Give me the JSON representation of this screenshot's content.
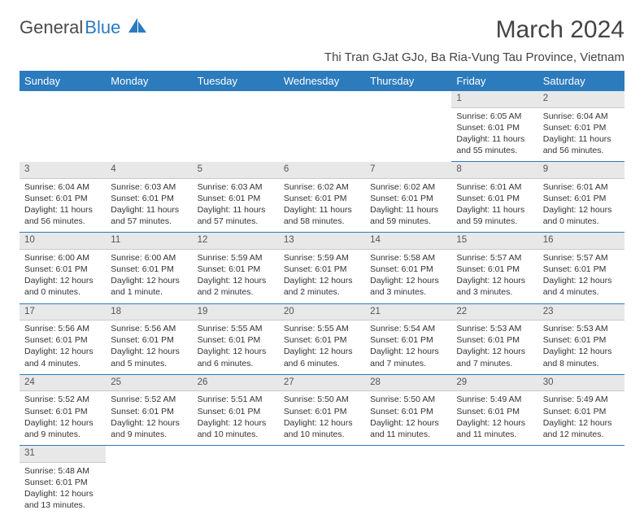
{
  "logo": {
    "part1": "General",
    "part2": "Blue"
  },
  "title": "March 2024",
  "location": "Thi Tran GJat GJo, Ba Ria-Vung Tau Province, Vietnam",
  "dayHeaders": [
    "Sunday",
    "Monday",
    "Tuesday",
    "Wednesday",
    "Thursday",
    "Friday",
    "Saturday"
  ],
  "colors": {
    "headerBg": "#2b7bbd",
    "headerText": "#ffffff",
    "dayBg": "#e8e8e8",
    "border": "#2b7bbd"
  },
  "weeks": [
    [
      null,
      null,
      null,
      null,
      null,
      {
        "n": "1",
        "sunrise": "Sunrise: 6:05 AM",
        "sunset": "Sunset: 6:01 PM",
        "daylight": "Daylight: 11 hours and 55 minutes."
      },
      {
        "n": "2",
        "sunrise": "Sunrise: 6:04 AM",
        "sunset": "Sunset: 6:01 PM",
        "daylight": "Daylight: 11 hours and 56 minutes."
      }
    ],
    [
      {
        "n": "3",
        "sunrise": "Sunrise: 6:04 AM",
        "sunset": "Sunset: 6:01 PM",
        "daylight": "Daylight: 11 hours and 56 minutes."
      },
      {
        "n": "4",
        "sunrise": "Sunrise: 6:03 AM",
        "sunset": "Sunset: 6:01 PM",
        "daylight": "Daylight: 11 hours and 57 minutes."
      },
      {
        "n": "5",
        "sunrise": "Sunrise: 6:03 AM",
        "sunset": "Sunset: 6:01 PM",
        "daylight": "Daylight: 11 hours and 57 minutes."
      },
      {
        "n": "6",
        "sunrise": "Sunrise: 6:02 AM",
        "sunset": "Sunset: 6:01 PM",
        "daylight": "Daylight: 11 hours and 58 minutes."
      },
      {
        "n": "7",
        "sunrise": "Sunrise: 6:02 AM",
        "sunset": "Sunset: 6:01 PM",
        "daylight": "Daylight: 11 hours and 59 minutes."
      },
      {
        "n": "8",
        "sunrise": "Sunrise: 6:01 AM",
        "sunset": "Sunset: 6:01 PM",
        "daylight": "Daylight: 11 hours and 59 minutes."
      },
      {
        "n": "9",
        "sunrise": "Sunrise: 6:01 AM",
        "sunset": "Sunset: 6:01 PM",
        "daylight": "Daylight: 12 hours and 0 minutes."
      }
    ],
    [
      {
        "n": "10",
        "sunrise": "Sunrise: 6:00 AM",
        "sunset": "Sunset: 6:01 PM",
        "daylight": "Daylight: 12 hours and 0 minutes."
      },
      {
        "n": "11",
        "sunrise": "Sunrise: 6:00 AM",
        "sunset": "Sunset: 6:01 PM",
        "daylight": "Daylight: 12 hours and 1 minute."
      },
      {
        "n": "12",
        "sunrise": "Sunrise: 5:59 AM",
        "sunset": "Sunset: 6:01 PM",
        "daylight": "Daylight: 12 hours and 2 minutes."
      },
      {
        "n": "13",
        "sunrise": "Sunrise: 5:59 AM",
        "sunset": "Sunset: 6:01 PM",
        "daylight": "Daylight: 12 hours and 2 minutes."
      },
      {
        "n": "14",
        "sunrise": "Sunrise: 5:58 AM",
        "sunset": "Sunset: 6:01 PM",
        "daylight": "Daylight: 12 hours and 3 minutes."
      },
      {
        "n": "15",
        "sunrise": "Sunrise: 5:57 AM",
        "sunset": "Sunset: 6:01 PM",
        "daylight": "Daylight: 12 hours and 3 minutes."
      },
      {
        "n": "16",
        "sunrise": "Sunrise: 5:57 AM",
        "sunset": "Sunset: 6:01 PM",
        "daylight": "Daylight: 12 hours and 4 minutes."
      }
    ],
    [
      {
        "n": "17",
        "sunrise": "Sunrise: 5:56 AM",
        "sunset": "Sunset: 6:01 PM",
        "daylight": "Daylight: 12 hours and 4 minutes."
      },
      {
        "n": "18",
        "sunrise": "Sunrise: 5:56 AM",
        "sunset": "Sunset: 6:01 PM",
        "daylight": "Daylight: 12 hours and 5 minutes."
      },
      {
        "n": "19",
        "sunrise": "Sunrise: 5:55 AM",
        "sunset": "Sunset: 6:01 PM",
        "daylight": "Daylight: 12 hours and 6 minutes."
      },
      {
        "n": "20",
        "sunrise": "Sunrise: 5:55 AM",
        "sunset": "Sunset: 6:01 PM",
        "daylight": "Daylight: 12 hours and 6 minutes."
      },
      {
        "n": "21",
        "sunrise": "Sunrise: 5:54 AM",
        "sunset": "Sunset: 6:01 PM",
        "daylight": "Daylight: 12 hours and 7 minutes."
      },
      {
        "n": "22",
        "sunrise": "Sunrise: 5:53 AM",
        "sunset": "Sunset: 6:01 PM",
        "daylight": "Daylight: 12 hours and 7 minutes."
      },
      {
        "n": "23",
        "sunrise": "Sunrise: 5:53 AM",
        "sunset": "Sunset: 6:01 PM",
        "daylight": "Daylight: 12 hours and 8 minutes."
      }
    ],
    [
      {
        "n": "24",
        "sunrise": "Sunrise: 5:52 AM",
        "sunset": "Sunset: 6:01 PM",
        "daylight": "Daylight: 12 hours and 9 minutes."
      },
      {
        "n": "25",
        "sunrise": "Sunrise: 5:52 AM",
        "sunset": "Sunset: 6:01 PM",
        "daylight": "Daylight: 12 hours and 9 minutes."
      },
      {
        "n": "26",
        "sunrise": "Sunrise: 5:51 AM",
        "sunset": "Sunset: 6:01 PM",
        "daylight": "Daylight: 12 hours and 10 minutes."
      },
      {
        "n": "27",
        "sunrise": "Sunrise: 5:50 AM",
        "sunset": "Sunset: 6:01 PM",
        "daylight": "Daylight: 12 hours and 10 minutes."
      },
      {
        "n": "28",
        "sunrise": "Sunrise: 5:50 AM",
        "sunset": "Sunset: 6:01 PM",
        "daylight": "Daylight: 12 hours and 11 minutes."
      },
      {
        "n": "29",
        "sunrise": "Sunrise: 5:49 AM",
        "sunset": "Sunset: 6:01 PM",
        "daylight": "Daylight: 12 hours and 11 minutes."
      },
      {
        "n": "30",
        "sunrise": "Sunrise: 5:49 AM",
        "sunset": "Sunset: 6:01 PM",
        "daylight": "Daylight: 12 hours and 12 minutes."
      }
    ],
    [
      {
        "n": "31",
        "sunrise": "Sunrise: 5:48 AM",
        "sunset": "Sunset: 6:01 PM",
        "daylight": "Daylight: 12 hours and 13 minutes."
      },
      null,
      null,
      null,
      null,
      null,
      null
    ]
  ]
}
